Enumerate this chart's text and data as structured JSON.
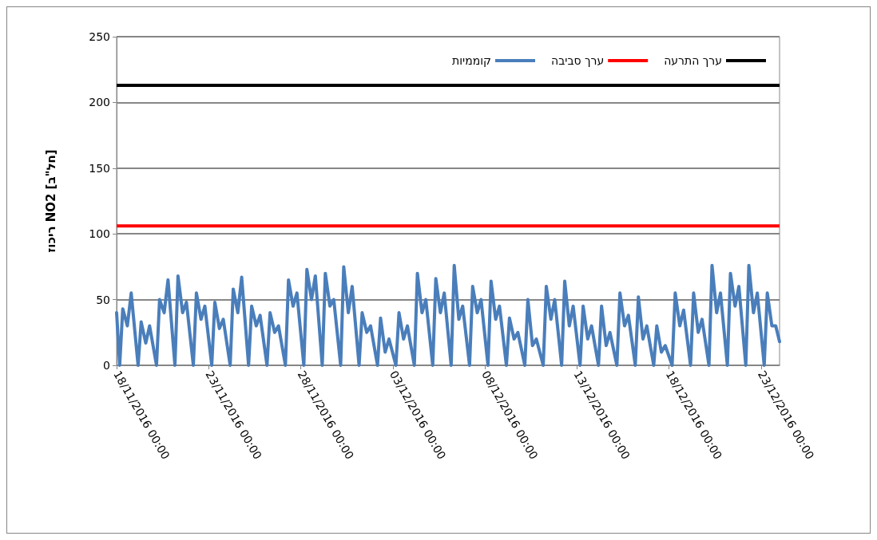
{
  "chart_data": {
    "type": "line",
    "ylabel": "ריכוז NO2 [חל\"ב]",
    "xlim": [
      "2016-11-18T00:00",
      "2016-12-24T00:00"
    ],
    "xticks": [
      {
        "value": "2016-11-18T00:00",
        "label": "18/11/2016 00:00"
      },
      {
        "value": "2016-11-23T00:00",
        "label": "23/11/2016 00:00"
      },
      {
        "value": "2016-11-28T00:00",
        "label": "28/11/2016 00:00"
      },
      {
        "value": "2016-12-03T00:00",
        "label": "03/12/2016 00:00"
      },
      {
        "value": "2016-12-08T00:00",
        "label": "08/12/2016 00:00"
      },
      {
        "value": "2016-12-13T00:00",
        "label": "13/12/2016 00:00"
      },
      {
        "value": "2016-12-18T00:00",
        "label": "18/12/2016 00:00"
      },
      {
        "value": "2016-12-23T00:00",
        "label": "23/12/2016 00:00"
      }
    ],
    "ylim": [
      0,
      250
    ],
    "yticks": [
      0,
      50,
      100,
      150,
      200,
      250
    ],
    "grid": "y",
    "legend": "top right",
    "marker": "none",
    "line_style": "solid",
    "series": [
      {
        "name": "קוממיות",
        "color": "#4a7ebb",
        "x": [
          "2016-11-18T00:00",
          "2016-11-18T04:00",
          "2016-11-18T08:00",
          "2016-11-18T14:00",
          "2016-11-18T19:00",
          "2016-11-19T04:00",
          "2016-11-19T08:00",
          "2016-11-19T14:00",
          "2016-11-19T19:00",
          "2016-11-20T04:00",
          "2016-11-20T08:00",
          "2016-11-20T14:00",
          "2016-11-20T19:00",
          "2016-11-21T04:00",
          "2016-11-21T08:00",
          "2016-11-21T14:00",
          "2016-11-21T19:00",
          "2016-11-22T04:00",
          "2016-11-22T08:00",
          "2016-11-22T14:00",
          "2016-11-22T19:00",
          "2016-11-23T04:00",
          "2016-11-23T08:00",
          "2016-11-23T14:00",
          "2016-11-23T19:00",
          "2016-11-24T04:00",
          "2016-11-24T08:00",
          "2016-11-24T14:00",
          "2016-11-24T19:00",
          "2016-11-25T04:00",
          "2016-11-25T08:00",
          "2016-11-25T14:00",
          "2016-11-25T19:00",
          "2016-11-26T04:00",
          "2016-11-26T08:00",
          "2016-11-26T14:00",
          "2016-11-26T19:00",
          "2016-11-27T04:00",
          "2016-11-27T08:00",
          "2016-11-27T14:00",
          "2016-11-27T19:00",
          "2016-11-28T04:00",
          "2016-11-28T08:00",
          "2016-11-28T14:00",
          "2016-11-28T19:00",
          "2016-11-29T04:00",
          "2016-11-29T08:00",
          "2016-11-29T14:00",
          "2016-11-29T19:00",
          "2016-11-30T04:00",
          "2016-11-30T08:00",
          "2016-11-30T14:00",
          "2016-11-30T19:00",
          "2016-12-01T04:00",
          "2016-12-01T08:00",
          "2016-12-01T14:00",
          "2016-12-01T19:00",
          "2016-12-02T04:00",
          "2016-12-02T08:00",
          "2016-12-02T14:00",
          "2016-12-02T19:00",
          "2016-12-03T04:00",
          "2016-12-03T08:00",
          "2016-12-03T14:00",
          "2016-12-03T19:00",
          "2016-12-04T04:00",
          "2016-12-04T08:00",
          "2016-12-04T14:00",
          "2016-12-04T19:00",
          "2016-12-05T04:00",
          "2016-12-05T08:00",
          "2016-12-05T14:00",
          "2016-12-05T19:00",
          "2016-12-06T04:00",
          "2016-12-06T08:00",
          "2016-12-06T14:00",
          "2016-12-06T19:00",
          "2016-12-07T04:00",
          "2016-12-07T08:00",
          "2016-12-07T14:00",
          "2016-12-07T19:00",
          "2016-12-08T04:00",
          "2016-12-08T08:00",
          "2016-12-08T14:00",
          "2016-12-08T19:00",
          "2016-12-09T04:00",
          "2016-12-09T08:00",
          "2016-12-09T14:00",
          "2016-12-09T19:00",
          "2016-12-10T04:00",
          "2016-12-10T08:00",
          "2016-12-10T14:00",
          "2016-12-10T19:00",
          "2016-12-11T04:00",
          "2016-12-11T08:00",
          "2016-12-11T14:00",
          "2016-12-11T19:00",
          "2016-12-12T04:00",
          "2016-12-12T08:00",
          "2016-12-12T14:00",
          "2016-12-12T19:00",
          "2016-12-13T04:00",
          "2016-12-13T08:00",
          "2016-12-13T14:00",
          "2016-12-13T19:00",
          "2016-12-14T04:00",
          "2016-12-14T08:00",
          "2016-12-14T14:00",
          "2016-12-14T19:00",
          "2016-12-15T04:00",
          "2016-12-15T08:00",
          "2016-12-15T14:00",
          "2016-12-15T19:00",
          "2016-12-16T04:00",
          "2016-12-16T08:00",
          "2016-12-16T14:00",
          "2016-12-16T19:00",
          "2016-12-17T04:00",
          "2016-12-17T08:00",
          "2016-12-17T14:00",
          "2016-12-17T19:00",
          "2016-12-18T04:00",
          "2016-12-18T08:00",
          "2016-12-18T14:00",
          "2016-12-18T19:00",
          "2016-12-19T04:00",
          "2016-12-19T08:00",
          "2016-12-19T14:00",
          "2016-12-19T19:00",
          "2016-12-20T04:00",
          "2016-12-20T08:00",
          "2016-12-20T14:00",
          "2016-12-20T19:00",
          "2016-12-21T04:00",
          "2016-12-21T08:00",
          "2016-12-21T14:00",
          "2016-12-21T19:00",
          "2016-12-22T04:00",
          "2016-12-22T08:00",
          "2016-12-22T14:00",
          "2016-12-22T19:00",
          "2016-12-23T04:00",
          "2016-12-23T08:00",
          "2016-12-23T14:00",
          "2016-12-23T19:00",
          "2016-12-24T00:00"
        ],
        "values": [
          40,
          0,
          43,
          30,
          55,
          0,
          33,
          17,
          30,
          0,
          50,
          40,
          65,
          0,
          68,
          40,
          48,
          0,
          55,
          35,
          45,
          0,
          48,
          28,
          35,
          0,
          58,
          40,
          67,
          0,
          45,
          30,
          38,
          0,
          40,
          25,
          30,
          0,
          65,
          45,
          55,
          0,
          73,
          50,
          68,
          0,
          70,
          45,
          50,
          0,
          75,
          40,
          60,
          0,
          40,
          25,
          30,
          0,
          36,
          10,
          20,
          0,
          40,
          20,
          30,
          0,
          70,
          40,
          50,
          0,
          66,
          40,
          55,
          0,
          76,
          35,
          45,
          0,
          60,
          40,
          50,
          0,
          64,
          35,
          45,
          0,
          36,
          20,
          25,
          0,
          50,
          15,
          20,
          0,
          60,
          35,
          50,
          0,
          64,
          30,
          45,
          0,
          45,
          20,
          30,
          0,
          45,
          15,
          25,
          0,
          55,
          30,
          38,
          0,
          52,
          20,
          30,
          0,
          30,
          10,
          15,
          0,
          55,
          30,
          42,
          0,
          55,
          25,
          35,
          0,
          76,
          40,
          55,
          0,
          70,
          45,
          60,
          0,
          76,
          40,
          55,
          0,
          55,
          30,
          30,
          18
        ]
      }
    ],
    "ref_lines": [
      {
        "axis": "y",
        "value": 106,
        "label": "ערך סביבה",
        "color": "#ff0000",
        "line_style": "solid"
      },
      {
        "axis": "y",
        "value": 213,
        "label": "ערך התרעה",
        "color": "#000000",
        "line_style": "solid"
      }
    ]
  }
}
